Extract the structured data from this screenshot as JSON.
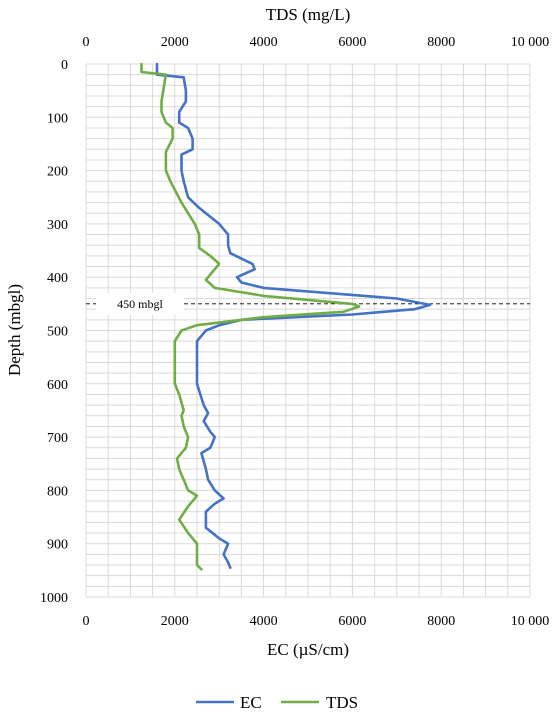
{
  "chart_data": {
    "type": "line",
    "title": "",
    "orientation": "depth-profile",
    "y_axis": {
      "label": "Depth (mbgl)",
      "range": [
        0,
        1000
      ],
      "reversed": true,
      "ticks": [
        0,
        100,
        200,
        300,
        400,
        500,
        600,
        700,
        800,
        900,
        1000
      ]
    },
    "x_axis_bottom": {
      "label": "EC (µS/cm)",
      "range": [
        0,
        10000
      ],
      "ticks": [
        "0",
        "2000",
        "4000",
        "6000",
        "8000",
        "10 000"
      ]
    },
    "x_axis_top": {
      "label": "TDS (mg/L)",
      "range": [
        0,
        10000
      ],
      "ticks": [
        "0",
        "2000",
        "4000",
        "6000",
        "8000",
        "10 000"
      ]
    },
    "grid": {
      "vertical_minor": true,
      "horizontal_minor": true,
      "color": "#d9d9d9"
    },
    "legend": {
      "position": "bottom",
      "entries": [
        "EC",
        "TDS"
      ]
    },
    "annotation": {
      "text": "450 mbgl",
      "depth": 450,
      "style": "dashed"
    },
    "series": [
      {
        "name": "EC",
        "color": "#4472c4",
        "axis": "bottom",
        "points": [
          {
            "d": 0,
            "v": 1600
          },
          {
            "d": 20,
            "v": 1600
          },
          {
            "d": 25,
            "v": 2200
          },
          {
            "d": 50,
            "v": 2250
          },
          {
            "d": 70,
            "v": 2250
          },
          {
            "d": 90,
            "v": 2100
          },
          {
            "d": 110,
            "v": 2100
          },
          {
            "d": 120,
            "v": 2300
          },
          {
            "d": 140,
            "v": 2400
          },
          {
            "d": 160,
            "v": 2400
          },
          {
            "d": 170,
            "v": 2150
          },
          {
            "d": 200,
            "v": 2150
          },
          {
            "d": 220,
            "v": 2200
          },
          {
            "d": 250,
            "v": 2300
          },
          {
            "d": 270,
            "v": 2550
          },
          {
            "d": 300,
            "v": 3000
          },
          {
            "d": 320,
            "v": 3200
          },
          {
            "d": 340,
            "v": 3200
          },
          {
            "d": 355,
            "v": 3250
          },
          {
            "d": 375,
            "v": 3750
          },
          {
            "d": 385,
            "v": 3800
          },
          {
            "d": 400,
            "v": 3400
          },
          {
            "d": 410,
            "v": 3500
          },
          {
            "d": 420,
            "v": 4000
          },
          {
            "d": 440,
            "v": 7000
          },
          {
            "d": 452,
            "v": 7750
          },
          {
            "d": 460,
            "v": 7400
          },
          {
            "d": 470,
            "v": 6000
          },
          {
            "d": 480,
            "v": 3500
          },
          {
            "d": 490,
            "v": 3000
          },
          {
            "d": 500,
            "v": 2700
          },
          {
            "d": 520,
            "v": 2500
          },
          {
            "d": 600,
            "v": 2500
          },
          {
            "d": 640,
            "v": 2650
          },
          {
            "d": 655,
            "v": 2750
          },
          {
            "d": 670,
            "v": 2650
          },
          {
            "d": 690,
            "v": 2800
          },
          {
            "d": 700,
            "v": 2900
          },
          {
            "d": 720,
            "v": 2800
          },
          {
            "d": 730,
            "v": 2600
          },
          {
            "d": 760,
            "v": 2700
          },
          {
            "d": 780,
            "v": 2750
          },
          {
            "d": 800,
            "v": 2900
          },
          {
            "d": 815,
            "v": 3100
          },
          {
            "d": 825,
            "v": 2900
          },
          {
            "d": 840,
            "v": 2700
          },
          {
            "d": 870,
            "v": 2700
          },
          {
            "d": 890,
            "v": 3000
          },
          {
            "d": 900,
            "v": 3200
          },
          {
            "d": 920,
            "v": 3100
          },
          {
            "d": 935,
            "v": 3200
          },
          {
            "d": 945,
            "v": 3250
          }
        ]
      },
      {
        "name": "TDS",
        "color": "#70ad47",
        "axis": "top",
        "points": [
          {
            "d": 0,
            "v": 1250
          },
          {
            "d": 15,
            "v": 1250
          },
          {
            "d": 20,
            "v": 1800
          },
          {
            "d": 45,
            "v": 1750
          },
          {
            "d": 70,
            "v": 1700
          },
          {
            "d": 90,
            "v": 1700
          },
          {
            "d": 110,
            "v": 1800
          },
          {
            "d": 120,
            "v": 1950
          },
          {
            "d": 140,
            "v": 1950
          },
          {
            "d": 165,
            "v": 1800
          },
          {
            "d": 200,
            "v": 1800
          },
          {
            "d": 220,
            "v": 1900
          },
          {
            "d": 260,
            "v": 2150
          },
          {
            "d": 280,
            "v": 2300
          },
          {
            "d": 300,
            "v": 2450
          },
          {
            "d": 320,
            "v": 2550
          },
          {
            "d": 345,
            "v": 2550
          },
          {
            "d": 360,
            "v": 2800
          },
          {
            "d": 375,
            "v": 3000
          },
          {
            "d": 395,
            "v": 2800
          },
          {
            "d": 405,
            "v": 2700
          },
          {
            "d": 420,
            "v": 2900
          },
          {
            "d": 435,
            "v": 4000
          },
          {
            "d": 450,
            "v": 6000
          },
          {
            "d": 455,
            "v": 6150
          },
          {
            "d": 465,
            "v": 5800
          },
          {
            "d": 475,
            "v": 4000
          },
          {
            "d": 490,
            "v": 2500
          },
          {
            "d": 500,
            "v": 2150
          },
          {
            "d": 520,
            "v": 2000
          },
          {
            "d": 600,
            "v": 2000
          },
          {
            "d": 620,
            "v": 2100
          },
          {
            "d": 650,
            "v": 2200
          },
          {
            "d": 660,
            "v": 2150
          },
          {
            "d": 680,
            "v": 2200
          },
          {
            "d": 700,
            "v": 2300
          },
          {
            "d": 720,
            "v": 2250
          },
          {
            "d": 740,
            "v": 2050
          },
          {
            "d": 760,
            "v": 2100
          },
          {
            "d": 780,
            "v": 2200
          },
          {
            "d": 800,
            "v": 2300
          },
          {
            "d": 810,
            "v": 2500
          },
          {
            "d": 830,
            "v": 2300
          },
          {
            "d": 855,
            "v": 2100
          },
          {
            "d": 880,
            "v": 2300
          },
          {
            "d": 900,
            "v": 2500
          },
          {
            "d": 940,
            "v": 2500
          },
          {
            "d": 948,
            "v": 2600
          }
        ]
      }
    ]
  }
}
